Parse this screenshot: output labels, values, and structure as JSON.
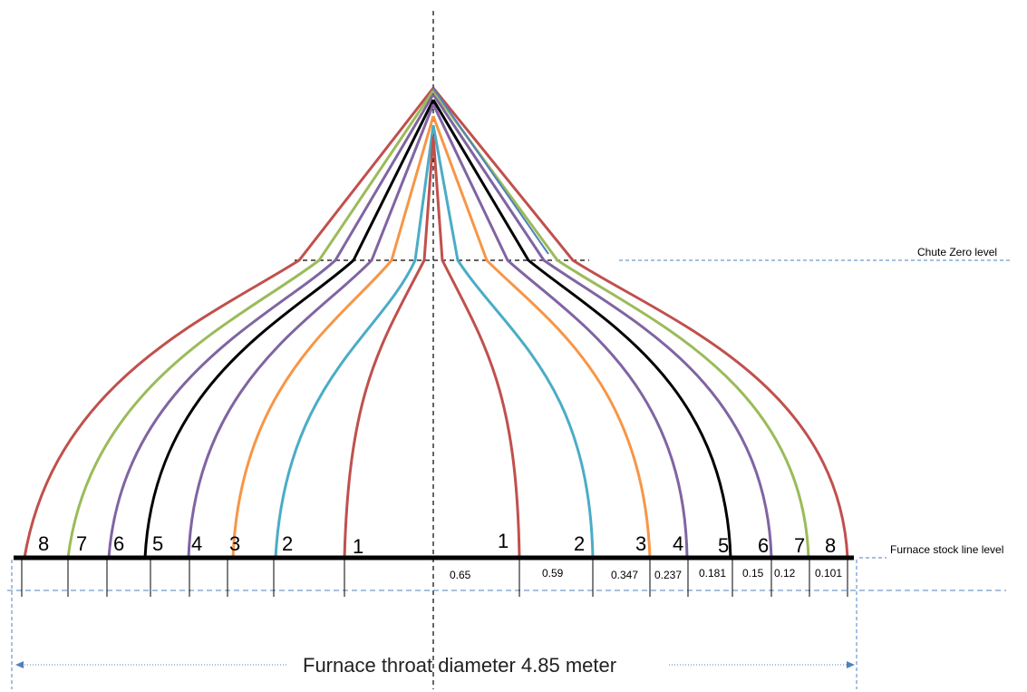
{
  "labels": {
    "chute_zero": "Chute Zero level",
    "stock_line": "Furnace stock line level",
    "throat": "Furnace throat diameter 4.85 meter"
  },
  "ring_numbers": [
    "8",
    "7",
    "6",
    "5",
    "4",
    "3",
    "2",
    "1",
    "1",
    "2",
    "3",
    "4",
    "5",
    "6",
    "7",
    "8"
  ],
  "widths": [
    "0.65",
    "0.59",
    "0.347",
    "0.237",
    "0.181",
    "0.15",
    "0.12",
    "0.101"
  ],
  "colors": {
    "ring1": "#c0504d",
    "ring2": "#4bacc6",
    "ring3": "#f79646",
    "ring4": "#8064a2",
    "ring5": "#000000",
    "ring6": "#8064a2",
    "ring7": "#9bbb59",
    "ring8": "#c0504d",
    "guide": "#4f81bd"
  }
}
